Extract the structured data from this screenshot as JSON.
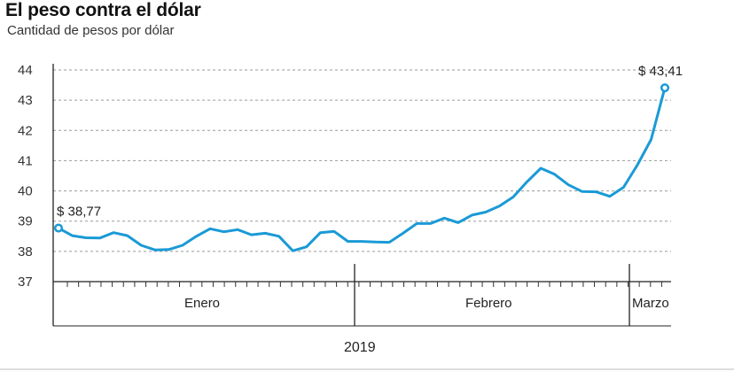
{
  "chart_data": {
    "type": "line",
    "title": "El peso contra el dólar",
    "subtitle": "Cantidad de pesos por dólar",
    "ylim": [
      37,
      44
    ],
    "yticks": [
      "37",
      "38",
      "39",
      "40",
      "41",
      "42",
      "43",
      "44"
    ],
    "grid": true,
    "line_color": "#1a9ad6",
    "months": [
      "Enero",
      "Febrero",
      "Marzo"
    ],
    "year": "2019",
    "annotations": {
      "start": "$ 38,77",
      "end": "$ 43,41"
    },
    "series": [
      {
        "values": [
          38.77,
          38.52,
          38.45,
          38.44,
          38.62,
          38.52,
          38.2,
          38.05,
          38.06,
          38.2,
          38.5,
          38.75,
          38.65,
          38.72,
          38.55,
          38.6,
          38.5,
          38.02,
          38.15,
          38.62,
          38.66,
          38.33,
          38.33,
          38.31,
          38.3,
          38.6,
          38.92,
          38.92,
          39.1,
          38.95,
          39.2,
          39.3,
          39.5,
          39.8,
          40.3,
          40.75,
          40.55,
          40.2,
          39.98,
          39.97,
          39.82,
          40.12,
          40.85,
          41.7,
          43.41
        ]
      }
    ]
  }
}
